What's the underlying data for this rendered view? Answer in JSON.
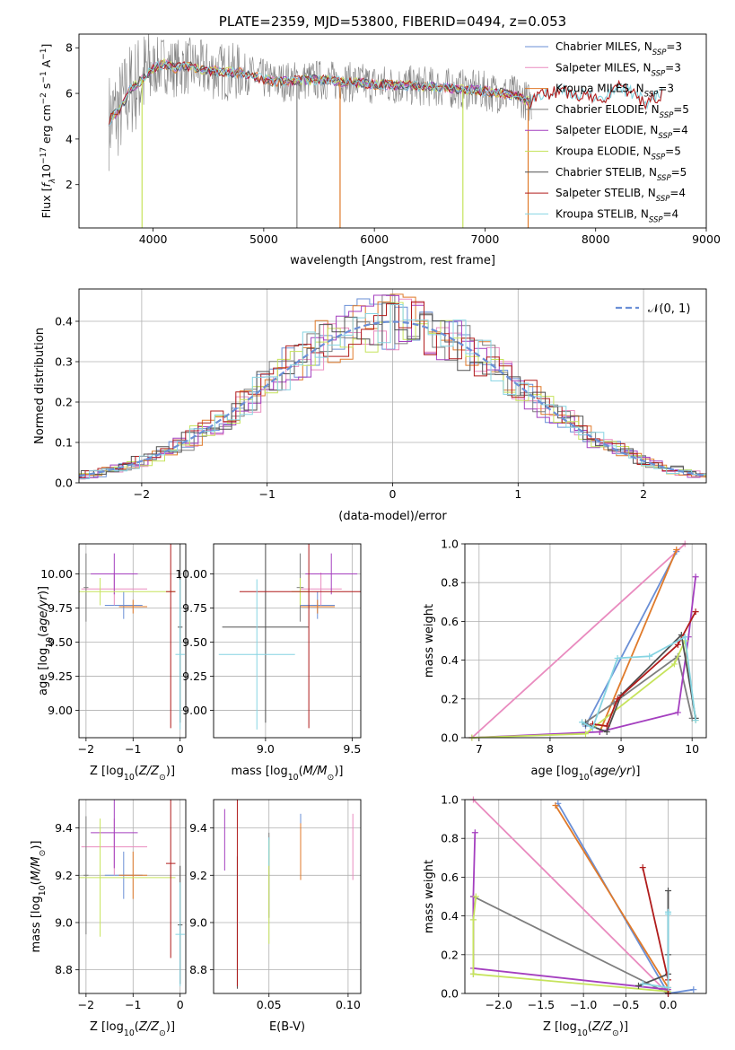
{
  "colors": {
    "Chabrier MILES": "#6a8fd6",
    "Salpeter MILES": "#e98bbf",
    "Kroupa MILES": "#e07a2a",
    "Chabrier ELODIE": "#7e7e7e",
    "Salpeter ELODIE": "#a43fbf",
    "Kroupa ELODIE": "#c6e35c",
    "Chabrier STELIB": "#505050",
    "Salpeter STELIB": "#b01c1c",
    "Kroupa STELIB": "#86d4e2",
    "data": "#808080",
    "fit": "#7ad8db"
  },
  "chart_data": [
    {
      "id": "spectrum",
      "type": "line",
      "title": "PLATE=2359, MJD=53800, FIBERID=0494, z=0.053",
      "xlabel": "wavelength [Angstrom, rest frame]",
      "ylabel": "Flux [f_λ 10^-17 erg cm^-2 s^-1 A^-1]",
      "xlim": [
        3330,
        9000
      ],
      "ylim": [
        0.1,
        8.6
      ],
      "xticks": [
        4000,
        5000,
        6000,
        7000,
        8000,
        9000
      ],
      "yticks": [
        2,
        4,
        6,
        8
      ],
      "grid": false,
      "legend_position": "top-right",
      "continuum": {
        "x": [
          3600,
          3700,
          3800,
          3900,
          4000,
          4100,
          4200,
          4300,
          4500,
          4800,
          5100,
          5500,
          6000,
          6500,
          7000,
          7300,
          7400
        ],
        "y": [
          4.8,
          5.3,
          6.2,
          6.6,
          7.1,
          7.3,
          7.1,
          7.2,
          7.0,
          6.9,
          6.5,
          6.6,
          6.4,
          6.3,
          6.1,
          5.9,
          5.6
        ]
      },
      "model_continuum": {
        "x": [
          7400,
          7500,
          7700,
          7900,
          8100,
          8200,
          8300,
          8450,
          8600
        ],
        "y": [
          5.6,
          5.9,
          6.1,
          5.9,
          5.8,
          6.3,
          6.1,
          5.6,
          6.0
        ]
      },
      "drops": [
        {
          "x": 3900,
          "series": "Kroupa ELODIE"
        },
        {
          "x": 5690,
          "series": "Kroupa MILES"
        },
        {
          "x": 6800,
          "series": "Kroupa ELODIE"
        },
        {
          "x": 7390,
          "series": "Kroupa MILES"
        },
        {
          "x": 5300,
          "series": "data"
        }
      ],
      "legend": [
        {
          "name": "Chabrier MILES",
          "label": "Chabrier MILES, N",
          "nssp": "=3"
        },
        {
          "name": "Salpeter MILES",
          "label": "Salpeter MILES, N",
          "nssp": "=3"
        },
        {
          "name": "Kroupa MILES",
          "label": "Kroupa MILES, N",
          "nssp": "=3"
        },
        {
          "name": "Chabrier ELODIE",
          "label": "Chabrier ELODIE, N",
          "nssp": "=5"
        },
        {
          "name": "Salpeter ELODIE",
          "label": "Salpeter ELODIE, N",
          "nssp": "=4"
        },
        {
          "name": "Kroupa ELODIE",
          "label": "Kroupa ELODIE, N",
          "nssp": "=5"
        },
        {
          "name": "Chabrier STELIB",
          "label": "Chabrier STELIB, N",
          "nssp": "=5"
        },
        {
          "name": "Salpeter STELIB",
          "label": "Salpeter STELIB, N",
          "nssp": "=4"
        },
        {
          "name": "Kroupa STELIB",
          "label": "Kroupa STELIB, N",
          "nssp": "=4"
        }
      ],
      "legend_subscript": "SSP"
    },
    {
      "id": "residuals",
      "type": "line",
      "xlabel": "(data-model)/error",
      "ylabel": "Normed distribution",
      "xlim": [
        -2.5,
        2.5
      ],
      "ylim": [
        0,
        0.48
      ],
      "xticks": [
        -2,
        -1,
        0,
        1,
        2
      ],
      "xticklabels": [
        "−2",
        "−1",
        "0",
        "1",
        "2"
      ],
      "yticks": [
        0.0,
        0.1,
        0.2,
        0.3,
        0.4
      ],
      "yticklabels": [
        "0.0",
        "0.1",
        "0.2",
        "0.3",
        "0.4"
      ],
      "grid": true,
      "legend_position": "top-right",
      "legend": [
        {
          "name": "normal",
          "label": "𝒩(0, 1)"
        }
      ],
      "gaussian": {
        "mean": 0,
        "sigma": 1
      },
      "bin_width": 0.1
    },
    {
      "id": "age-vs-Z",
      "type": "scatter",
      "xlabel": "Z [log10(Z/Z⊙)]",
      "ylabel": "age  [log10(age/yr)]",
      "xlim": [
        -2.15,
        0.12
      ],
      "ylim": [
        8.8,
        10.22
      ],
      "xticks": [
        -2,
        -1,
        0
      ],
      "xticklabels": [
        "−2",
        "−1",
        "0"
      ],
      "yticks": [
        9.0,
        9.25,
        9.5,
        9.75,
        10.0
      ],
      "yticklabels": [
        "9.00",
        "9.25",
        "9.50",
        "9.75",
        "10.00"
      ],
      "grid": true,
      "points": [
        {
          "series": "Chabrier MILES",
          "x": -1.2,
          "y": 9.77,
          "xerr": 0.4,
          "yerr": 0.1
        },
        {
          "series": "Salpeter MILES",
          "x": -1.4,
          "y": 9.89,
          "xerr": 0.7,
          "yerr": 0.12
        },
        {
          "series": "Kroupa MILES",
          "x": -1.0,
          "y": 9.76,
          "xerr": 0.3,
          "yerr": 0.05
        },
        {
          "series": "Chabrier ELODIE",
          "x": -2.0,
          "y": 9.9,
          "xerr": 0.05,
          "yerr": 0.25
        },
        {
          "series": "Salpeter ELODIE",
          "x": -1.4,
          "y": 10.0,
          "xerr": 0.5,
          "yerr": 0.15
        },
        {
          "series": "Kroupa ELODIE",
          "x": -1.7,
          "y": 9.87,
          "xerr": 1.6,
          "yerr": 0.1
        },
        {
          "series": "Chabrier STELIB",
          "x": 0.0,
          "y": 9.61,
          "xerr": 0.05,
          "yerr": 0.7
        },
        {
          "series": "Salpeter STELIB",
          "x": -0.2,
          "y": 9.87,
          "xerr": 0.1,
          "yerr": 1.0
        },
        {
          "series": "Kroupa STELIB",
          "x": 0.0,
          "y": 9.41,
          "xerr": 0.1,
          "yerr": 0.55
        }
      ]
    },
    {
      "id": "age-vs-mass",
      "type": "scatter",
      "xlabel": "mass [log10(M/M⊙)]",
      "ylabel": "",
      "xlim": [
        8.7,
        9.55
      ],
      "ylim": [
        8.8,
        10.22
      ],
      "xticks": [
        9.0,
        9.5
      ],
      "xticklabels": [
        "9.0",
        "9.5"
      ],
      "yticks": [
        9.0,
        9.25,
        9.5,
        9.75,
        10.0
      ],
      "yticklabels": [
        "9.00",
        "9.25",
        "9.50",
        "9.75",
        "10.00"
      ],
      "grid": true,
      "points": [
        {
          "series": "Chabrier MILES",
          "x": 9.3,
          "y": 9.77,
          "xerr": 0.1,
          "yerr": 0.1
        },
        {
          "series": "Salpeter MILES",
          "x": 9.32,
          "y": 9.89,
          "xerr": 0.12,
          "yerr": 0.12
        },
        {
          "series": "Kroupa MILES",
          "x": 9.3,
          "y": 9.76,
          "xerr": 0.1,
          "yerr": 0.05
        },
        {
          "series": "Chabrier ELODIE",
          "x": 9.2,
          "y": 9.9,
          "xerr": 0.02,
          "yerr": 0.25
        },
        {
          "series": "Salpeter ELODIE",
          "x": 9.38,
          "y": 10.0,
          "xerr": 0.15,
          "yerr": 0.15
        },
        {
          "series": "Kroupa ELODIE",
          "x": 9.2,
          "y": 9.87,
          "xerr": 0.05,
          "yerr": 0.1
        },
        {
          "series": "Chabrier STELIB",
          "x": 9.0,
          "y": 9.61,
          "xerr": 0.25,
          "yerr": 0.7
        },
        {
          "series": "Salpeter STELIB",
          "x": 9.25,
          "y": 9.87,
          "xerr": 0.4,
          "yerr": 1.0
        },
        {
          "series": "Kroupa STELIB",
          "x": 8.95,
          "y": 9.41,
          "xerr": 0.22,
          "yerr": 0.55
        }
      ]
    },
    {
      "id": "weight-vs-age",
      "type": "line",
      "xlabel": "age  [log10(age/yr)]",
      "ylabel": "mass weight",
      "xlim": [
        6.8,
        10.2
      ],
      "ylim": [
        0,
        1.0
      ],
      "xticks": [
        7,
        8,
        9,
        10
      ],
      "yticks": [
        0.0,
        0.2,
        0.4,
        0.6,
        0.8,
        1.0
      ],
      "yticklabels": [
        "0.0",
        "0.2",
        "0.4",
        "0.6",
        "0.8",
        "1.0"
      ],
      "grid": true,
      "series": [
        {
          "name": "Chabrier MILES",
          "x": [
            8.5,
            9.78
          ],
          "y": [
            0.06,
            0.96
          ]
        },
        {
          "name": "Salpeter MILES",
          "x": [
            6.9,
            9.9
          ],
          "y": [
            0.0,
            1.0
          ]
        },
        {
          "name": "Kroupa MILES",
          "x": [
            8.7,
            9.78
          ],
          "y": [
            0.03,
            0.97
          ]
        },
        {
          "name": "Chabrier ELODIE",
          "x": [
            8.5,
            8.9,
            9.8,
            10.0
          ],
          "y": [
            0.08,
            0.18,
            0.42,
            0.1
          ]
        },
        {
          "name": "Salpeter ELODIE",
          "x": [
            6.9,
            8.7,
            9.8,
            9.95,
            10.05
          ],
          "y": [
            0.0,
            0.03,
            0.13,
            0.52,
            0.83
          ]
        },
        {
          "name": "Kroupa ELODIE",
          "x": [
            6.9,
            8.5,
            9.75,
            9.9,
            10.05
          ],
          "y": [
            0.0,
            0.02,
            0.38,
            0.5,
            0.09
          ]
        },
        {
          "name": "Chabrier STELIB",
          "x": [
            8.5,
            8.8,
            9.0,
            9.85,
            10.05
          ],
          "y": [
            0.07,
            0.03,
            0.22,
            0.53,
            0.1
          ]
        },
        {
          "name": "Salpeter STELIB",
          "x": [
            8.6,
            8.8,
            8.95,
            9.8,
            10.05
          ],
          "y": [
            0.07,
            0.06,
            0.2,
            0.48,
            0.65
          ]
        },
        {
          "name": "Kroupa STELIB",
          "x": [
            8.45,
            8.6,
            8.95,
            9.4,
            9.9,
            10.05
          ],
          "y": [
            0.08,
            0.05,
            0.41,
            0.42,
            0.52,
            0.09
          ]
        }
      ]
    },
    {
      "id": "mass-vs-Z",
      "type": "scatter",
      "xlabel": "Z [log10(Z/Z⊙)]",
      "ylabel": "mass [log10(M/M⊙)]",
      "xlim": [
        -2.15,
        0.12
      ],
      "ylim": [
        8.7,
        9.52
      ],
      "xticks": [
        -2,
        -1,
        0
      ],
      "xticklabels": [
        "−2",
        "−1",
        "0"
      ],
      "yticks": [
        8.8,
        9.0,
        9.2,
        9.4
      ],
      "yticklabels": [
        "8.8",
        "9.0",
        "9.2",
        "9.4"
      ],
      "grid": true,
      "points": [
        {
          "series": "Chabrier MILES",
          "x": -1.2,
          "y": 9.2,
          "xerr": 0.4,
          "yerr": 0.1
        },
        {
          "series": "Salpeter MILES",
          "x": -1.4,
          "y": 9.32,
          "xerr": 0.7,
          "yerr": 0.12
        },
        {
          "series": "Kroupa MILES",
          "x": -1.0,
          "y": 9.2,
          "xerr": 0.3,
          "yerr": 0.1
        },
        {
          "series": "Chabrier ELODIE",
          "x": -2.0,
          "y": 9.2,
          "xerr": 0.05,
          "yerr": 0.25
        },
        {
          "series": "Salpeter ELODIE",
          "x": -1.4,
          "y": 9.38,
          "xerr": 0.5,
          "yerr": 0.15
        },
        {
          "series": "Kroupa ELODIE",
          "x": -1.7,
          "y": 9.19,
          "xerr": 1.6,
          "yerr": 0.25
        },
        {
          "series": "Chabrier STELIB",
          "x": 0.0,
          "y": 8.99,
          "xerr": 0.05,
          "yerr": 0.25
        },
        {
          "series": "Salpeter STELIB",
          "x": -0.2,
          "y": 9.25,
          "xerr": 0.1,
          "yerr": 0.4
        },
        {
          "series": "Kroupa STELIB",
          "x": 0.0,
          "y": 8.95,
          "xerr": 0.1,
          "yerr": 0.22
        }
      ]
    },
    {
      "id": "mass-vs-ebv",
      "type": "scatter",
      "xlabel": "E(B-V)",
      "ylabel": "",
      "xlim": [
        0.015,
        0.108
      ],
      "ylim": [
        8.7,
        9.52
      ],
      "xticks": [
        0.05,
        0.1
      ],
      "xticklabels": [
        "0.05",
        "0.10"
      ],
      "yticks": [
        8.8,
        9.0,
        9.2,
        9.4
      ],
      "yticklabels": [
        "8.8",
        "9.0",
        "9.2",
        "9.4"
      ],
      "grid": true,
      "points": [
        {
          "series": "Chabrier MILES",
          "x": 0.07,
          "y": 9.36,
          "xerr": 0,
          "yerr": 0.1
        },
        {
          "series": "Salpeter MILES",
          "x": 0.103,
          "y": 9.32,
          "xerr": 0,
          "yerr": 0.14
        },
        {
          "series": "Kroupa MILES",
          "x": 0.07,
          "y": 9.3,
          "xerr": 0,
          "yerr": 0.12
        },
        {
          "series": "Chabrier ELODIE",
          "x": 0.05,
          "y": 9.2,
          "xerr": 0,
          "yerr": 0.18
        },
        {
          "series": "Salpeter ELODIE",
          "x": 0.022,
          "y": 9.35,
          "xerr": 0,
          "yerr": 0.13
        },
        {
          "series": "Kroupa ELODIE",
          "x": 0.05,
          "y": 9.13,
          "xerr": 0,
          "yerr": 0.22
        },
        {
          "series": "Chabrier STELIB",
          "x": 0.03,
          "y": 9.0,
          "xerr": 0,
          "yerr": 0.28
        },
        {
          "series": "Salpeter STELIB",
          "x": 0.03,
          "y": 9.13,
          "xerr": 0,
          "yerr": 0.4
        },
        {
          "series": "Kroupa STELIB",
          "x": 0.05,
          "y": 9.3,
          "xerr": 0,
          "yerr": 0.06
        }
      ]
    },
    {
      "id": "weight-vs-Z",
      "type": "line",
      "xlabel": "Z [log10(Z/Z⊙)]",
      "ylabel": "mass weight",
      "xlim": [
        -2.4,
        0.45
      ],
      "ylim": [
        0,
        1.0
      ],
      "xticks": [
        -2.0,
        -1.5,
        -1.0,
        -0.5,
        0.0
      ],
      "xticklabels": [
        "−2.0",
        "−1.5",
        "−1.0",
        "−0.5",
        "0.0"
      ],
      "yticks": [
        0.0,
        0.2,
        0.4,
        0.6,
        0.8,
        1.0
      ],
      "yticklabels": [
        "0.0",
        "0.2",
        "0.4",
        "0.6",
        "0.8",
        "1.0"
      ],
      "grid": true,
      "series": [
        {
          "name": "Chabrier MILES",
          "x": [
            -1.3,
            0.0,
            0.3
          ],
          "y": [
            0.98,
            0.0,
            0.02
          ]
        },
        {
          "name": "Salpeter MILES",
          "x": [
            -2.3,
            0.0
          ],
          "y": [
            1.0,
            0.0
          ]
        },
        {
          "name": "Kroupa MILES",
          "x": [
            -1.33,
            0.0
          ],
          "y": [
            0.97,
            0.03
          ]
        },
        {
          "name": "Chabrier ELODIE",
          "x": [
            -2.3,
            -2.3,
            -2.3,
            0.0
          ],
          "y": [
            0.1,
            0.38,
            0.5,
            0.0
          ]
        },
        {
          "name": "Salpeter ELODIE",
          "x": [
            -2.28,
            -2.3,
            -2.3,
            0.0
          ],
          "y": [
            0.83,
            0.5,
            0.13,
            0.02
          ]
        },
        {
          "name": "Kroupa ELODIE",
          "x": [
            -2.27,
            -2.3,
            -2.3,
            0.0
          ],
          "y": [
            0.5,
            0.38,
            0.1,
            0.01
          ]
        },
        {
          "name": "Chabrier STELIB",
          "x": [
            -0.35,
            0.0,
            0.0,
            0.0
          ],
          "y": [
            0.04,
            0.1,
            0.2,
            0.53
          ]
        },
        {
          "name": "Salpeter STELIB",
          "x": [
            -0.3,
            0.0,
            0.0
          ],
          "y": [
            0.65,
            0.07,
            0.0
          ]
        },
        {
          "name": "Kroupa STELIB",
          "x": [
            -0.3,
            0.0,
            0.0,
            0.0
          ],
          "y": [
            0.05,
            0.03,
            0.41,
            0.42
          ]
        }
      ]
    }
  ]
}
